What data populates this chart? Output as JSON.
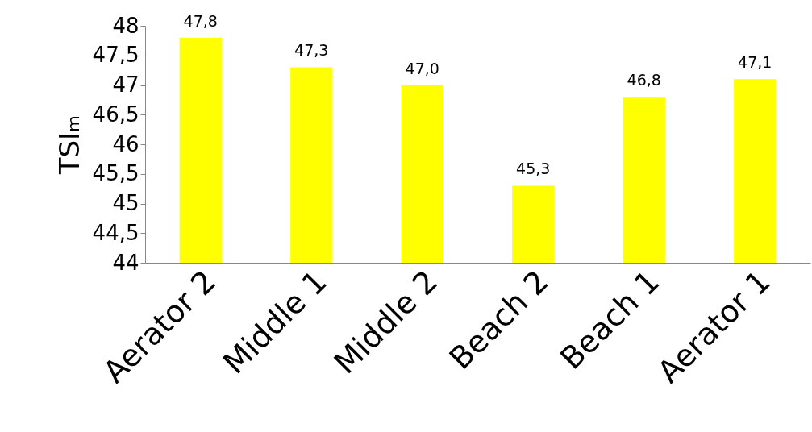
{
  "chart_data": {
    "type": "bar",
    "ylabel": "TSIₘ",
    "categories": [
      "Aerator 2",
      "Middle 1",
      "Middle 2",
      "Beach 2",
      "Beach 1",
      "Aerator 1"
    ],
    "values": [
      47.8,
      47.3,
      47.0,
      45.3,
      46.8,
      47.1
    ],
    "value_labels": [
      "47,8",
      "47,3",
      "47,0",
      "45,3",
      "46,8",
      "47,1"
    ],
    "color": "#ffff00",
    "ylim": [
      44,
      48
    ],
    "yticks": [
      44,
      {
        "value": 44.5,
        "label": "44,5"
      },
      45,
      {
        "value": 45.5,
        "label": "45,5"
      },
      46,
      {
        "value": 46.5,
        "label": "46,5"
      },
      47,
      {
        "value": 47.5,
        "label": "47,5"
      },
      48
    ],
    "grid": false
  }
}
